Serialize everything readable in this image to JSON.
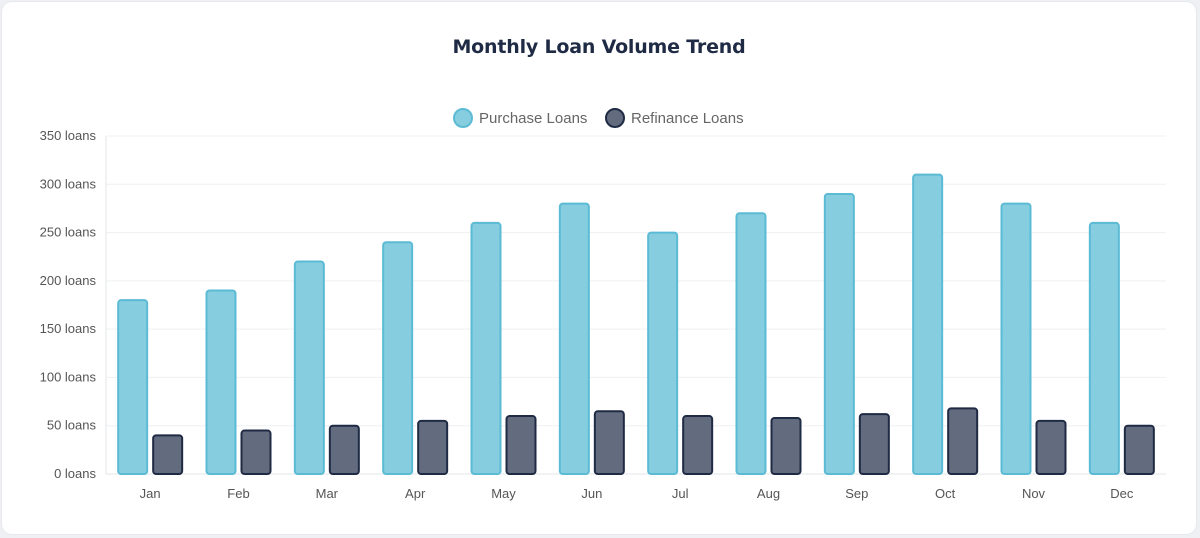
{
  "colors": {
    "purchase_fill": "#86cde0",
    "purchase_stroke": "#5bbad4",
    "refinance_fill": "#636b7e",
    "refinance_stroke": "#1f2a44",
    "grid": "#eef0f3",
    "axis_text": "#555555",
    "title": "#1f2a44"
  },
  "chart_data": {
    "type": "bar",
    "title": "Monthly Loan Volume Trend",
    "categories": [
      "Jan",
      "Feb",
      "Mar",
      "Apr",
      "May",
      "Jun",
      "Jul",
      "Aug",
      "Sep",
      "Oct",
      "Nov",
      "Dec"
    ],
    "series": [
      {
        "name": "Purchase Loans",
        "values": [
          180,
          190,
          220,
          240,
          260,
          280,
          250,
          270,
          290,
          310,
          280,
          260
        ]
      },
      {
        "name": "Refinance Loans",
        "values": [
          40,
          45,
          50,
          55,
          60,
          65,
          60,
          58,
          62,
          68,
          55,
          50
        ]
      }
    ],
    "y_ticks": [
      "0 loans",
      "50 loans",
      "100 loans",
      "150 loans",
      "200 loans",
      "250 loans",
      "300 loans",
      "350 loans"
    ],
    "ylim": [
      0,
      350
    ],
    "grid": true,
    "legend": "top-center"
  }
}
